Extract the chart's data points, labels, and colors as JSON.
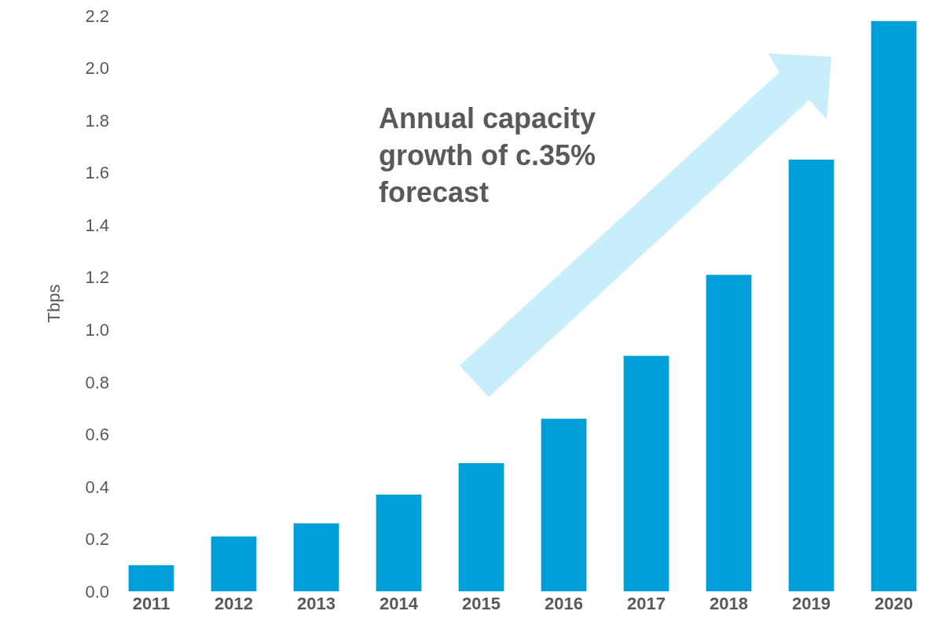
{
  "chart_data": {
    "type": "bar",
    "categories": [
      "2011",
      "2012",
      "2013",
      "2014",
      "2015",
      "2016",
      "2017",
      "2018",
      "2019",
      "2020"
    ],
    "values": [
      0.1,
      0.21,
      0.26,
      0.37,
      0.49,
      0.66,
      0.9,
      1.21,
      1.65,
      2.18
    ],
    "color": "#009fda",
    "ylabel": "Tbps",
    "ylim": [
      0,
      2.2
    ],
    "yticks": [
      {
        "value": 0,
        "label": "0.0"
      },
      {
        "value": 0.2,
        "label": "0.2"
      },
      {
        "value": 0.4,
        "label": "0.4"
      },
      {
        "value": 0.6,
        "label": "0.6"
      },
      {
        "value": 0.8,
        "label": "0.8"
      },
      {
        "value": 1.0,
        "label": "1.0"
      },
      {
        "value": 1.2,
        "label": "1.2"
      },
      {
        "value": 1.4,
        "label": "1.4"
      },
      {
        "value": 1.6,
        "label": "1.6"
      },
      {
        "value": 1.8,
        "label": "1.8"
      },
      {
        "value": 2.0,
        "label": "2.0"
      },
      {
        "value": 2.2,
        "label": "2.2"
      }
    ],
    "annotations": [
      "Annual capacity growth of c.35% forecast"
    ],
    "grid": false
  }
}
